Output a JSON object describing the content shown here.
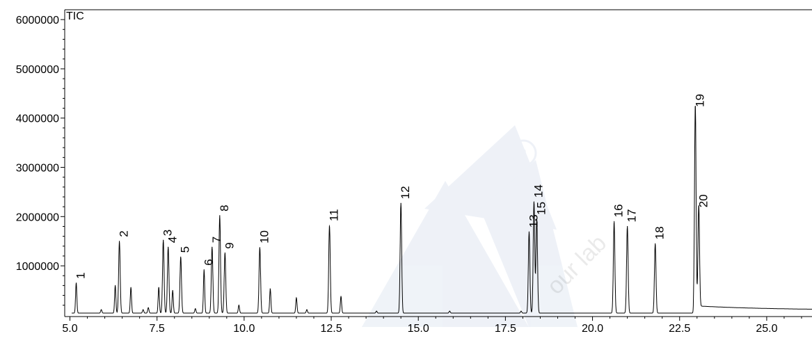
{
  "chart_data": {
    "type": "line",
    "series_label": "TIC",
    "xlim": [
      4.85,
      26.3
    ],
    "ylim": [
      -30000,
      6200000
    ],
    "x_ticks": [
      5.0,
      7.5,
      10.0,
      12.5,
      15.0,
      17.5,
      20.0,
      22.5,
      25.0
    ],
    "x_tick_labels": [
      "5.0",
      "7.5",
      "10.0",
      "12.5",
      "15.0",
      "17.5",
      "20.0",
      "22.5",
      "25.0"
    ],
    "y_ticks": [
      1000000,
      2000000,
      3000000,
      4000000,
      5000000,
      6000000
    ],
    "y_tick_labels": [
      "1000000",
      "2000000",
      "3000000",
      "4000000",
      "5000000",
      "6000000"
    ],
    "baseline": 40000,
    "peaks": [
      {
        "label": "1",
        "x": 5.18,
        "y": 650000
      },
      {
        "label": "",
        "x": 5.9,
        "y": 110000
      },
      {
        "label": "",
        "x": 6.3,
        "y": 600000
      },
      {
        "label": "2",
        "x": 6.42,
        "y": 1500000
      },
      {
        "label": "",
        "x": 6.75,
        "y": 560000
      },
      {
        "label": "",
        "x": 7.1,
        "y": 110000
      },
      {
        "label": "",
        "x": 7.25,
        "y": 150000
      },
      {
        "label": "",
        "x": 7.55,
        "y": 560000
      },
      {
        "label": "3",
        "x": 7.68,
        "y": 1520000
      },
      {
        "label": "4",
        "x": 7.82,
        "y": 1380000
      },
      {
        "label": "",
        "x": 7.95,
        "y": 500000
      },
      {
        "label": "5",
        "x": 8.18,
        "y": 1180000
      },
      {
        "label": "",
        "x": 8.6,
        "y": 130000
      },
      {
        "label": "6",
        "x": 8.85,
        "y": 920000
      },
      {
        "label": "7",
        "x": 9.08,
        "y": 1380000
      },
      {
        "label": "8",
        "x": 9.3,
        "y": 2020000
      },
      {
        "label": "9",
        "x": 9.45,
        "y": 1260000
      },
      {
        "label": "",
        "x": 9.85,
        "y": 200000
      },
      {
        "label": "10",
        "x": 10.45,
        "y": 1370000
      },
      {
        "label": "",
        "x": 10.75,
        "y": 530000
      },
      {
        "label": "",
        "x": 11.5,
        "y": 350000
      },
      {
        "label": "",
        "x": 11.8,
        "y": 110000
      },
      {
        "label": "11",
        "x": 12.45,
        "y": 1820000
      },
      {
        "label": "",
        "x": 12.78,
        "y": 380000
      },
      {
        "label": "",
        "x": 13.8,
        "y": 80000
      },
      {
        "label": "12",
        "x": 14.5,
        "y": 2270000
      },
      {
        "label": "",
        "x": 15.9,
        "y": 80000
      },
      {
        "label": "",
        "x": 17.95,
        "y": 80000
      },
      {
        "label": "13",
        "x": 18.18,
        "y": 1690000
      },
      {
        "label": "14",
        "x": 18.32,
        "y": 2300000
      },
      {
        "label": "15",
        "x": 18.4,
        "y": 1950000
      },
      {
        "label": "16",
        "x": 20.62,
        "y": 1900000
      },
      {
        "label": "17",
        "x": 21.0,
        "y": 1800000
      },
      {
        "label": "18",
        "x": 21.8,
        "y": 1450000
      },
      {
        "label": "19",
        "x": 22.95,
        "y": 4140000
      },
      {
        "label": "20",
        "x": 23.05,
        "y": 2100000
      }
    ],
    "watermark_text": "our lab"
  }
}
